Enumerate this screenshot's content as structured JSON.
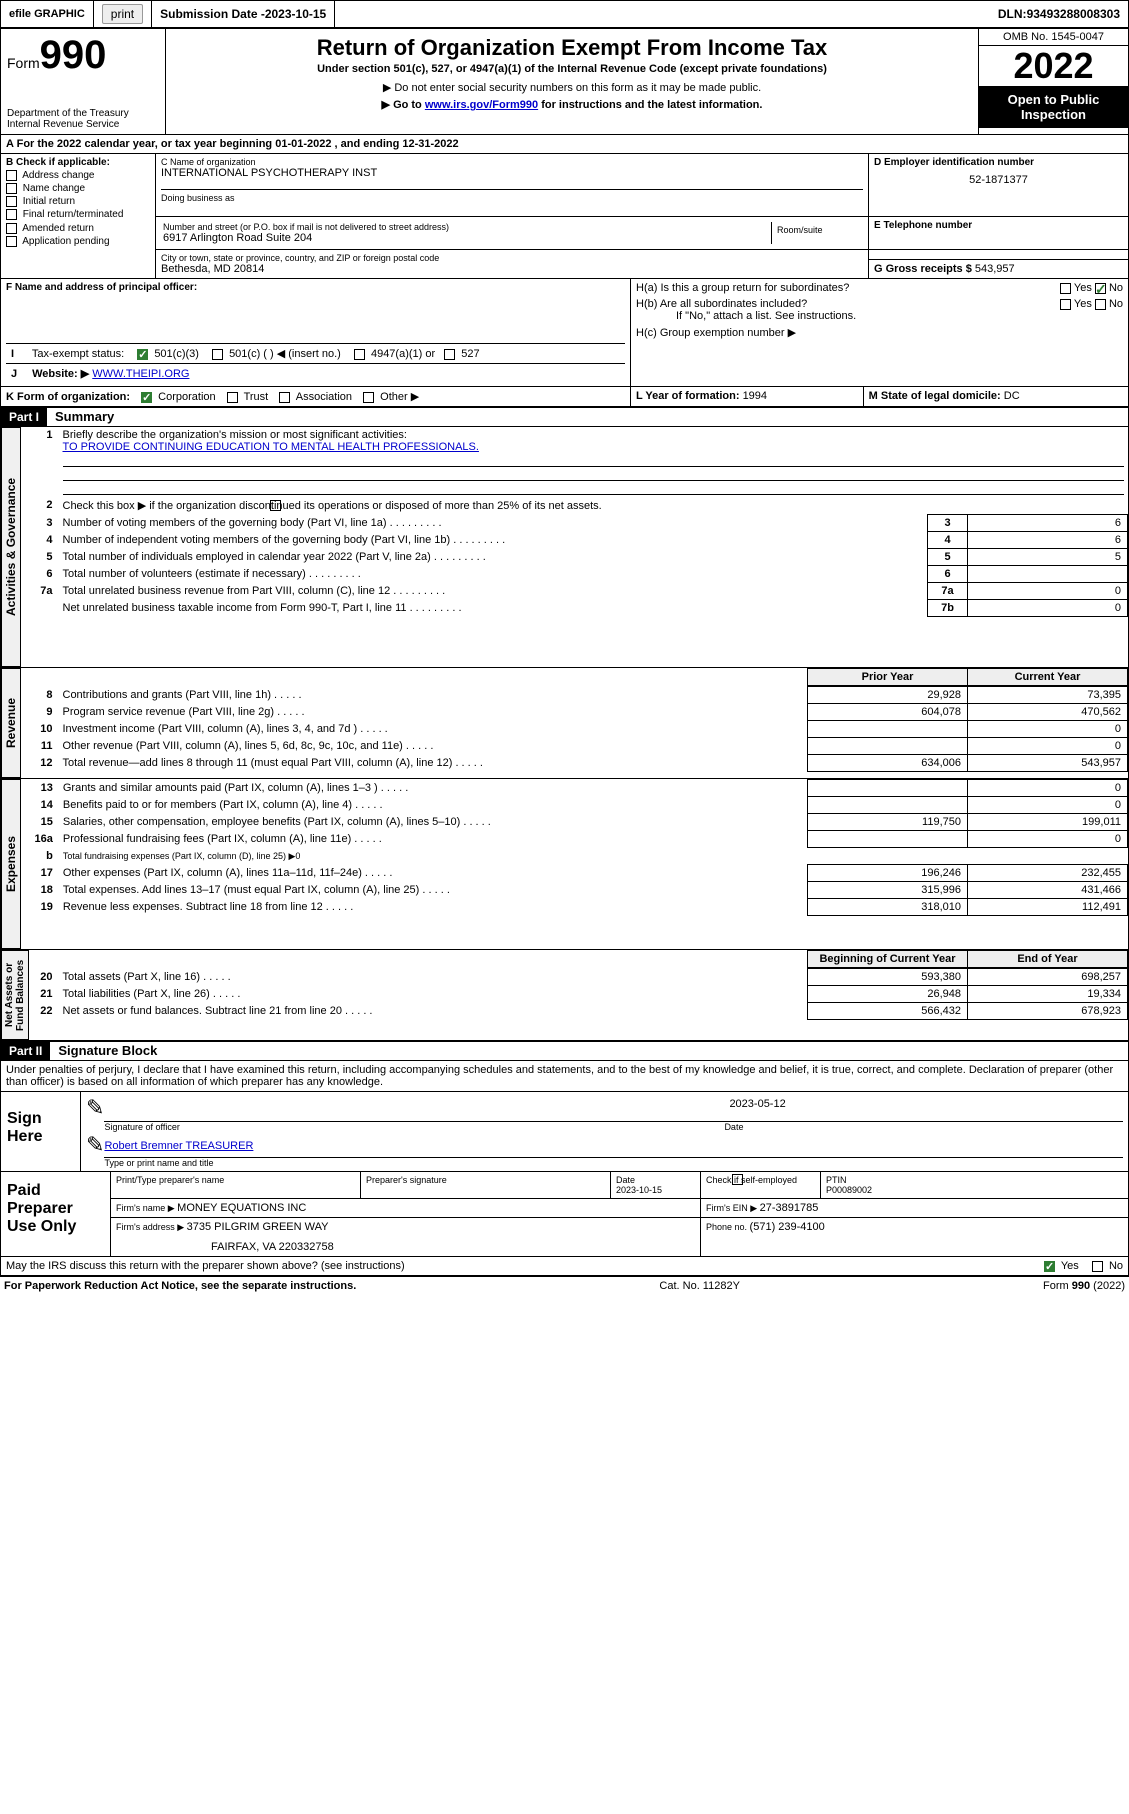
{
  "topbar": {
    "efile": "efile GRAPHIC",
    "print": "print",
    "sub_label": "Submission Date - ",
    "sub_date": "2023-10-15",
    "dln_label": "DLN: ",
    "dln": "93493288008303"
  },
  "header": {
    "form_word": "Form",
    "form_num": "990",
    "dept": "Department of the Treasury",
    "irs": "Internal Revenue Service",
    "title": "Return of Organization Exempt From Income Tax",
    "sub1": "Under section 501(c), 527, or 4947(a)(1) of the Internal Revenue Code (except private foundations)",
    "sub2": "▶ Do not enter social security numbers on this form as it may be made public.",
    "sub3_pre": "▶ Go to ",
    "sub3_link": "www.irs.gov/Form990",
    "sub3_post": " for instructions and the latest information.",
    "omb": "OMB No. 1545-0047",
    "year": "2022",
    "open": "Open to Public Inspection"
  },
  "A": {
    "text": "For the 2022 calendar year, or tax year beginning ",
    "begin": "01-01-2022",
    "mid": "   , and ending ",
    "end": "12-31-2022"
  },
  "B": {
    "label": "B Check if applicable:",
    "opts": [
      "Address change",
      "Name change",
      "Initial return",
      "Final return/terminated",
      "Amended return",
      "Application pending"
    ]
  },
  "C": {
    "name_lbl": "C Name of organization",
    "name": "INTERNATIONAL PSYCHOTHERAPY INST",
    "dba_lbl": "Doing business as",
    "addr_lbl": "Number and street (or P.O. box if mail is not delivered to street address)",
    "room_lbl": "Room/suite",
    "addr": "6917 Arlington Road Suite 204",
    "city_lbl": "City or town, state or province, country, and ZIP or foreign postal code",
    "city": "Bethesda, MD  20814"
  },
  "D": {
    "lbl": "D Employer identification number",
    "val": "52-1871377"
  },
  "E": {
    "lbl": "E Telephone number",
    "val": ""
  },
  "G": {
    "lbl": "G Gross receipts $ ",
    "val": "543,957"
  },
  "F": {
    "lbl": "F  Name and address of principal officer:"
  },
  "H": {
    "a": "H(a)  Is this a group return for subordinates?",
    "b": "H(b)  Are all subordinates included?",
    "b_note": "If \"No,\" attach a list. See instructions.",
    "c": "H(c)  Group exemption number ▶",
    "yes": "Yes",
    "no": "No"
  },
  "I": {
    "lbl": "Tax-exempt status:",
    "o1": "501(c)(3)",
    "o2": "501(c) (  ) ◀ (insert no.)",
    "o3": "4947(a)(1) or",
    "o4": "527"
  },
  "J": {
    "lbl": "Website: ▶ ",
    "val": "WWW.THEIPI.ORG"
  },
  "K": {
    "lbl": "K Form of organization:",
    "o1": "Corporation",
    "o2": "Trust",
    "o3": "Association",
    "o4": "Other ▶"
  },
  "L": {
    "lbl": "L Year of formation: ",
    "val": "1994"
  },
  "M": {
    "lbl": "M State of legal domicile: ",
    "val": "DC"
  },
  "part1": {
    "tag": "Part I",
    "title": "Summary"
  },
  "summary": {
    "l1_lbl": "Briefly describe the organization's mission or most significant activities:",
    "l1_val": "TO PROVIDE CONTINUING EDUCATION TO MENTAL HEALTH PROFESSIONALS.",
    "l2": "Check this box ▶        if the organization discontinued its operations or disposed of more than 25% of its net assets.",
    "rows_single": [
      {
        "n": "3",
        "d": "Number of voting members of the governing body (Part VI, line 1a)",
        "b": "3",
        "v": "6"
      },
      {
        "n": "4",
        "d": "Number of independent voting members of the governing body (Part VI, line 1b)",
        "b": "4",
        "v": "6"
      },
      {
        "n": "5",
        "d": "Total number of individuals employed in calendar year 2022 (Part V, line 2a)",
        "b": "5",
        "v": "5"
      },
      {
        "n": "6",
        "d": "Total number of volunteers (estimate if necessary)",
        "b": "6",
        "v": ""
      },
      {
        "n": "7a",
        "d": "Total unrelated business revenue from Part VIII, column (C), line 12",
        "b": "7a",
        "v": "0"
      },
      {
        "n": "",
        "d": "Net unrelated business taxable income from Form 990-T, Part I, line 11",
        "b": "7b",
        "v": "0"
      }
    ],
    "col_hdr_prior": "Prior Year",
    "col_hdr_curr": "Current Year",
    "rev_rows": [
      {
        "n": "8",
        "d": "Contributions and grants (Part VIII, line 1h)",
        "p": "29,928",
        "c": "73,395"
      },
      {
        "n": "9",
        "d": "Program service revenue (Part VIII, line 2g)",
        "p": "604,078",
        "c": "470,562"
      },
      {
        "n": "10",
        "d": "Investment income (Part VIII, column (A), lines 3, 4, and 7d )",
        "p": "",
        "c": "0"
      },
      {
        "n": "11",
        "d": "Other revenue (Part VIII, column (A), lines 5, 6d, 8c, 9c, 10c, and 11e)",
        "p": "",
        "c": "0"
      },
      {
        "n": "12",
        "d": "Total revenue—add lines 8 through 11 (must equal Part VIII, column (A), line 12)",
        "p": "634,006",
        "c": "543,957"
      }
    ],
    "exp_rows": [
      {
        "n": "13",
        "d": "Grants and similar amounts paid (Part IX, column (A), lines 1–3 )",
        "p": "",
        "c": "0"
      },
      {
        "n": "14",
        "d": "Benefits paid to or for members (Part IX, column (A), line 4)",
        "p": "",
        "c": "0"
      },
      {
        "n": "15",
        "d": "Salaries, other compensation, employee benefits (Part IX, column (A), lines 5–10)",
        "p": "119,750",
        "c": "199,011"
      },
      {
        "n": "16a",
        "d": "Professional fundraising fees (Part IX, column (A), line 11e)",
        "p": "",
        "c": "0"
      },
      {
        "n": "b",
        "d": "Total fundraising expenses (Part IX, column (D), line 25) ▶0",
        "p": null,
        "c": null
      },
      {
        "n": "17",
        "d": "Other expenses (Part IX, column (A), lines 11a–11d, 11f–24e)",
        "p": "196,246",
        "c": "232,455"
      },
      {
        "n": "18",
        "d": "Total expenses. Add lines 13–17 (must equal Part IX, column (A), line 25)",
        "p": "315,996",
        "c": "431,466"
      },
      {
        "n": "19",
        "d": "Revenue less expenses. Subtract line 18 from line 12",
        "p": "318,010",
        "c": "112,491"
      }
    ],
    "col_hdr_boy": "Beginning of Current Year",
    "col_hdr_eoy": "End of Year",
    "na_rows": [
      {
        "n": "20",
        "d": "Total assets (Part X, line 16)",
        "p": "593,380",
        "c": "698,257"
      },
      {
        "n": "21",
        "d": "Total liabilities (Part X, line 26)",
        "p": "26,948",
        "c": "19,334"
      },
      {
        "n": "22",
        "d": "Net assets or fund balances. Subtract line 21 from line 20",
        "p": "566,432",
        "c": "678,923"
      }
    ]
  },
  "vtabs": {
    "gov": "Activities & Governance",
    "rev": "Revenue",
    "exp": "Expenses",
    "na": "Net Assets or Fund Balances"
  },
  "part2": {
    "tag": "Part II",
    "title": "Signature Block"
  },
  "sig": {
    "perjury": "Under penalties of perjury, I declare that I have examined this return, including accompanying schedules and statements, and to the best of my knowledge and belief, it is true, correct, and complete. Declaration of preparer (other than officer) is based on all information of which preparer has any knowledge.",
    "sign_here": "Sign Here",
    "sig_officer": "Signature of officer",
    "date_lbl": "Date",
    "date": "2023-05-12",
    "name": "Robert Bremner TREASURER",
    "name_lbl": "Type or print name and title",
    "paid": "Paid Preparer Use Only",
    "p_name_lbl": "Print/Type preparer's name",
    "p_sig_lbl": "Preparer's signature",
    "p_date_lbl": "Date",
    "p_date": "2023-10-15",
    "p_check": "Check         if self-employed",
    "ptin_lbl": "PTIN",
    "ptin": "P00089002",
    "firm_name_lbl": "Firm's name      ▶ ",
    "firm_name": "MONEY EQUATIONS INC",
    "firm_ein_lbl": "Firm's EIN ▶ ",
    "firm_ein": "27-3891785",
    "firm_addr_lbl": "Firm's address ▶ ",
    "firm_addr1": "3735 PILGRIM GREEN WAY",
    "firm_addr2": "FAIRFAX, VA  220332758",
    "phone_lbl": "Phone no. ",
    "phone": "(571) 239-4100",
    "may_irs": "May the IRS discuss this return with the preparer shown above? (see instructions)"
  },
  "footer": {
    "pra": "For Paperwork Reduction Act Notice, see the separate instructions.",
    "cat": "Cat. No. 11282Y",
    "form": "Form 990 (2022)"
  }
}
